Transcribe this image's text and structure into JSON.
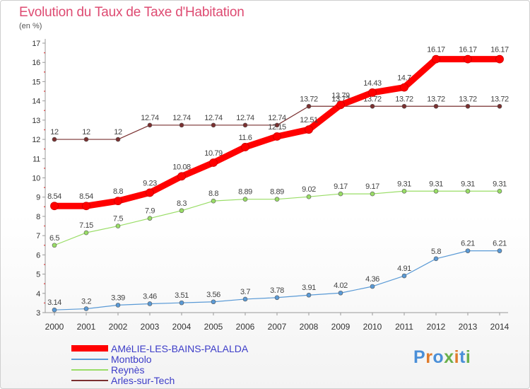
{
  "title": "Evolution du Taux de Taxe d'Habitation",
  "unit_label": "(en %)",
  "logo": {
    "text": "Proxiti",
    "letter_colors": [
      "#4a8fd8",
      "#e07b2b",
      "#4a8fd8",
      "#6ab04c",
      "#e07b2b",
      "#4a8fd8",
      "#6ab04c"
    ]
  },
  "chart_data": {
    "type": "line",
    "title": "Evolution du Taux de Taxe d'Habitation",
    "ylabel": "(en %)",
    "xlabel": "",
    "x": [
      "2000",
      "2001",
      "2002",
      "2003",
      "2004",
      "2005",
      "2006",
      "2007",
      "2008",
      "2009",
      "2010",
      "2011",
      "2012",
      "2013",
      "2014"
    ],
    "ylim": [
      3,
      17
    ],
    "yticks": [
      "3",
      "4",
      "5",
      "6",
      "7",
      "8",
      "9",
      "10",
      "11",
      "12",
      "13",
      "14",
      "15",
      "16",
      "17"
    ],
    "grid": false,
    "legend_position": "bottom-left",
    "series": [
      {
        "name": "AMéLIE-LES-BAINS-PALALDA",
        "color": "#ff0000",
        "values": [
          8.54,
          8.54,
          8.8,
          9.23,
          10.08,
          10.79,
          11.6,
          12.15,
          12.51,
          13.79,
          14.43,
          14.7,
          16.17,
          16.17,
          16.17
        ],
        "labels": [
          "8.54",
          "8.54",
          "8.8",
          "9.23",
          "10.08",
          "10.79",
          "11.6",
          "12.15",
          "12.51",
          "13.79",
          "14.43",
          "14.7",
          "16.17",
          "16.17",
          "16.17"
        ]
      },
      {
        "name": "Montbolo",
        "color": "#5a9ad6",
        "values": [
          3.14,
          3.2,
          3.39,
          3.46,
          3.51,
          3.56,
          3.7,
          3.78,
          3.91,
          4.02,
          4.36,
          4.91,
          5.8,
          6.21,
          6.21
        ],
        "labels": [
          "3.14",
          "3.2",
          "3.39",
          "3.46",
          "3.51",
          "3.56",
          "3.7",
          "3.78",
          "3.91",
          "4.02",
          "4.36",
          "4.91",
          "5.8",
          "6.21",
          "6.21"
        ]
      },
      {
        "name": "Reynès",
        "color": "#99dd66",
        "values": [
          6.5,
          7.15,
          7.5,
          7.9,
          8.3,
          8.8,
          8.89,
          8.89,
          9.02,
          9.17,
          9.17,
          9.31,
          9.31,
          9.31,
          9.31
        ],
        "labels": [
          "6.5",
          "7.15",
          "7.5",
          "7.9",
          "8.3",
          "8.8",
          "8.89",
          "8.89",
          "9.02",
          "9.17",
          "9.17",
          "9.31",
          "9.31",
          "9.31",
          "9.31"
        ]
      },
      {
        "name": "Arles-sur-Tech",
        "color": "#7a3030",
        "values": [
          12,
          12,
          12,
          12.74,
          12.74,
          12.74,
          12.74,
          12.74,
          13.72,
          13.72,
          13.72,
          13.72,
          13.72,
          13.72,
          13.72
        ],
        "labels": [
          "12",
          "12",
          "12",
          "12.74",
          "12.74",
          "12.74",
          "12.74",
          "12.74",
          "13.72",
          "13.72",
          "13.72",
          "13.72",
          "13.72",
          "13.72",
          "13.72"
        ]
      }
    ]
  }
}
